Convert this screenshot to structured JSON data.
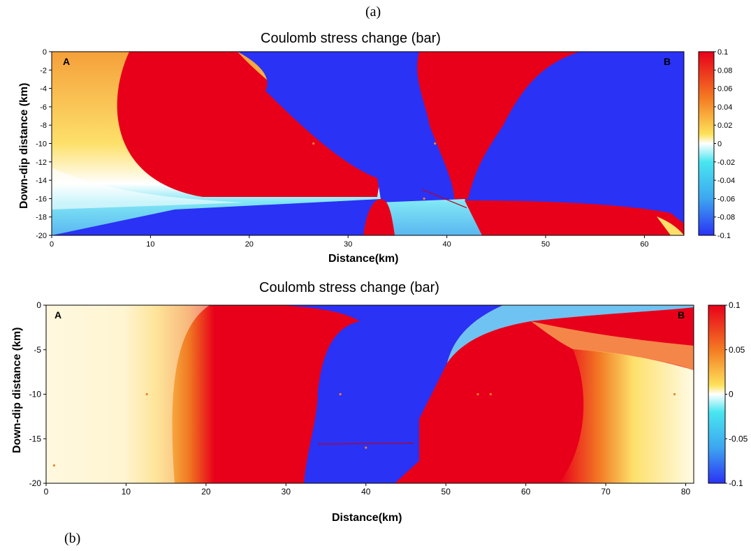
{
  "figure_labels": {
    "top": "(a)",
    "bottom": "(b)"
  },
  "chart_data": [
    {
      "type": "heatmap",
      "title": "Coulomb stress change (bar)",
      "xlabel": "Distance(km)",
      "ylabel": "Down-dip distance (km)",
      "xlim": [
        0,
        64
      ],
      "ylim": [
        -20,
        0
      ],
      "xticks": [
        0,
        10,
        20,
        30,
        40,
        50,
        60
      ],
      "yticks": [
        0,
        -2,
        -4,
        -6,
        -8,
        -10,
        -12,
        -14,
        -16,
        -18,
        -20
      ],
      "colorbar": {
        "range": [
          -0.1,
          0.1
        ],
        "ticks": [
          "0.1",
          "0.08",
          "0.06",
          "0.04",
          "0.02",
          "0",
          "-0.02",
          "-0.04",
          "-0.06",
          "-0.08",
          "-0.1"
        ]
      },
      "annotations": {
        "left": "A",
        "right": "B"
      },
      "fault_trace": [
        [
          37.5,
          -15
        ],
        [
          42,
          -17
        ]
      ],
      "markers": [
        [
          26.5,
          -10
        ],
        [
          38.8,
          -10
        ],
        [
          37.7,
          -16
        ]
      ]
    },
    {
      "type": "heatmap",
      "title": "Coulomb stress change (bar)",
      "xlabel": "Distance(km)",
      "ylabel": "Down-dip distance (km)",
      "xlim": [
        0,
        81
      ],
      "ylim": [
        -20,
        0
      ],
      "xticks": [
        0,
        10,
        20,
        30,
        40,
        50,
        60,
        70,
        80
      ],
      "yticks": [
        0,
        -5,
        -10,
        -15,
        -20
      ],
      "colorbar": {
        "range": [
          -0.1,
          0.1
        ],
        "ticks": [
          "0.1",
          "0.05",
          "0",
          "-0.05",
          "-0.1"
        ]
      },
      "annotations": {
        "left": "A",
        "right": "B"
      },
      "fault_trace": [
        [
          34,
          -15.6
        ],
        [
          46,
          -15.5
        ]
      ],
      "markers": [
        [
          1,
          -18
        ],
        [
          12.6,
          -10
        ],
        [
          36.8,
          -10
        ],
        [
          40,
          -16
        ],
        [
          54,
          -10
        ],
        [
          55.6,
          -10
        ],
        [
          78.6,
          -10
        ]
      ]
    }
  ]
}
